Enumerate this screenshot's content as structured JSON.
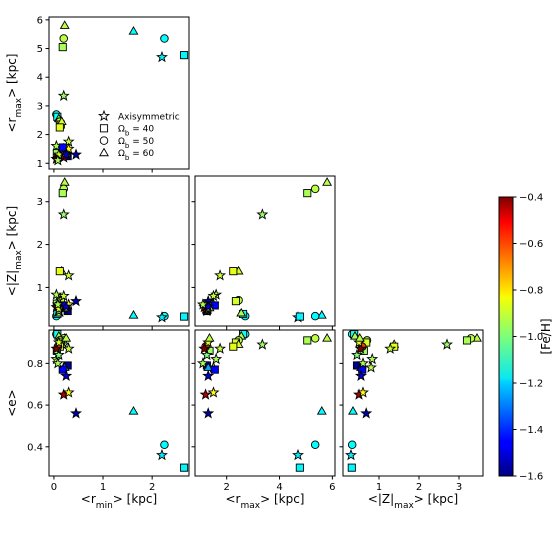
{
  "chart_data": {
    "type": "scatter",
    "layout": "corner-plot",
    "variables": [
      {
        "key": "rmin",
        "name": "r_min",
        "prefix": "<r",
        "sub": "min",
        "suffix": "> [kpc]"
      },
      {
        "key": "rmax",
        "name": "r_max",
        "prefix": "<r",
        "sub": "max",
        "suffix": "> [kpc]"
      },
      {
        "key": "zmax",
        "name": "|Z|_max",
        "prefix": "<|Z|",
        "sub": "max",
        "suffix": "> [kpc]"
      },
      {
        "key": "e",
        "name": "e",
        "prefix": "<e>",
        "sub": "",
        "suffix": ""
      }
    ],
    "ranges": {
      "rmin": [
        -0.1,
        2.75
      ],
      "rmax": [
        0.8,
        6.1
      ],
      "zmax": [
        0.1,
        3.6
      ],
      "e": [
        0.26,
        0.96
      ]
    },
    "ticks": {
      "rmin": [
        0,
        1,
        2
      ],
      "rmax_x": [
        2,
        4,
        6
      ],
      "rmax_y": [
        1,
        2,
        3,
        4,
        5,
        6
      ],
      "zmax_x": [
        1,
        2,
        3
      ],
      "zmax_y": [
        1,
        2,
        3
      ],
      "e": [
        0.4,
        0.6,
        0.8
      ]
    },
    "panels": [
      {
        "x": "rmin",
        "y": "rmax"
      },
      {
        "x": "rmin",
        "y": "zmax"
      },
      {
        "x": "rmax",
        "y": "zmax"
      },
      {
        "x": "rmin",
        "y": "e"
      },
      {
        "x": "rmax",
        "y": "e"
      },
      {
        "x": "zmax",
        "y": "e"
      }
    ],
    "legend": {
      "placement": "inside top-left panel, lower-center",
      "entries": [
        {
          "marker": "star",
          "label": "Axisymmetric"
        },
        {
          "marker": "square",
          "label": "Ω_b = 40",
          "prefix": "Ω",
          "sub": "b",
          "suffix": " = 40"
        },
        {
          "marker": "circle",
          "label": "Ω_b = 50",
          "prefix": "Ω",
          "sub": "b",
          "suffix": " = 50"
        },
        {
          "marker": "triangle",
          "label": "Ω_b = 60",
          "prefix": "Ω",
          "sub": "b",
          "suffix": " = 60"
        }
      ]
    },
    "colorbar": {
      "label": "[Fe/H]",
      "range": [
        -1.6,
        -0.4
      ],
      "ticks": [
        "-0.4",
        "-0.6",
        "-0.8",
        "-1.0",
        "-1.2",
        "-1.4",
        "-1.6"
      ],
      "colormap": "jet"
    },
    "points": [
      {
        "marker": "triangle",
        "rmin": 0.22,
        "rmax": 5.8,
        "zmax": 3.45,
        "e": 0.92,
        "feh": -0.93
      },
      {
        "marker": "circle",
        "rmin": 0.2,
        "rmax": 5.35,
        "zmax": 3.3,
        "e": 0.92,
        "feh": -0.93
      },
      {
        "marker": "square",
        "rmin": 0.18,
        "rmax": 5.05,
        "zmax": 3.2,
        "e": 0.91,
        "feh": -0.95
      },
      {
        "marker": "star",
        "rmin": 0.2,
        "rmax": 3.35,
        "zmax": 2.7,
        "e": 0.89,
        "feh": -0.97
      },
      {
        "marker": "triangle",
        "rmin": 1.62,
        "rmax": 5.6,
        "zmax": 0.35,
        "e": 0.57,
        "feh": -1.15
      },
      {
        "marker": "circle",
        "rmin": 2.25,
        "rmax": 5.35,
        "zmax": 0.33,
        "e": 0.41,
        "feh": -1.15
      },
      {
        "marker": "star",
        "rmin": 2.2,
        "rmax": 4.7,
        "zmax": 0.3,
        "e": 0.36,
        "feh": -1.17
      },
      {
        "marker": "square",
        "rmin": 2.65,
        "rmax": 4.77,
        "zmax": 0.32,
        "e": 0.3,
        "feh": -1.16
      },
      {
        "marker": "circle",
        "rmin": 0.05,
        "rmax": 2.7,
        "zmax": 0.33,
        "e": 0.94,
        "feh": -1.15
      },
      {
        "marker": "square",
        "rmin": 0.07,
        "rmax": 2.62,
        "zmax": 0.38,
        "e": 0.94,
        "feh": -1.13
      },
      {
        "marker": "triangle",
        "rmin": 0.1,
        "rmax": 2.55,
        "zmax": 0.4,
        "e": 0.93,
        "feh": -0.95
      },
      {
        "marker": "circle",
        "rmin": 0.12,
        "rmax": 2.45,
        "zmax": 0.7,
        "e": 0.91,
        "feh": -0.93
      },
      {
        "marker": "square",
        "rmin": 0.14,
        "rmax": 2.35,
        "zmax": 0.68,
        "e": 0.9,
        "feh": -0.9
      },
      {
        "marker": "triangle",
        "rmin": 0.16,
        "rmax": 2.45,
        "zmax": 1.38,
        "e": 0.89,
        "feh": -0.9
      },
      {
        "marker": "square",
        "rmin": 0.12,
        "rmax": 2.25,
        "zmax": 1.38,
        "e": 0.88,
        "feh": -0.88
      },
      {
        "marker": "star",
        "rmin": 0.3,
        "rmax": 1.75,
        "zmax": 1.28,
        "e": 0.87,
        "feh": -0.92
      },
      {
        "marker": "star",
        "rmin": 0.05,
        "rmax": 1.6,
        "zmax": 0.83,
        "e": 0.82,
        "feh": -0.95
      },
      {
        "marker": "star",
        "rmin": 0.2,
        "rmax": 1.5,
        "zmax": 0.8,
        "e": 0.78,
        "feh": -0.92
      },
      {
        "marker": "square",
        "rmin": 0.06,
        "rmax": 1.35,
        "zmax": 0.62,
        "e": 0.86,
        "feh": -0.97
      },
      {
        "marker": "square",
        "rmin": 0.28,
        "rmax": 1.25,
        "zmax": 0.45,
        "e": 0.79,
        "feh": -1.58
      },
      {
        "marker": "triangle",
        "rmin": 0.22,
        "rmax": 1.3,
        "zmax": 0.55,
        "e": 0.78,
        "feh": -1.25
      },
      {
        "marker": "star",
        "rmin": 0.1,
        "rmax": 1.25,
        "zmax": 0.45,
        "e": 0.84,
        "feh": -1.0
      },
      {
        "marker": "star",
        "rmin": 0.45,
        "rmax": 1.3,
        "zmax": 0.68,
        "e": 0.56,
        "feh": -1.55
      },
      {
        "marker": "star",
        "rmin": 0.2,
        "rmax": 1.2,
        "zmax": 0.5,
        "e": 0.65,
        "feh": -0.45
      },
      {
        "marker": "star",
        "rmin": 0.3,
        "rmax": 1.5,
        "zmax": 0.6,
        "e": 0.66,
        "feh": -0.85
      },
      {
        "marker": "square",
        "rmin": 0.18,
        "rmax": 1.55,
        "zmax": 0.58,
        "e": 0.77,
        "feh": -1.45
      },
      {
        "marker": "circle",
        "rmin": 0.08,
        "rmax": 1.2,
        "zmax": 0.58,
        "e": 0.88,
        "feh": -0.62
      },
      {
        "marker": "star",
        "rmin": 0.05,
        "rmax": 1.15,
        "zmax": 0.54,
        "e": 0.87,
        "feh": -0.4
      },
      {
        "marker": "star",
        "rmin": 0.1,
        "rmax": 1.3,
        "zmax": 0.5,
        "e": 0.9,
        "feh": -0.9
      },
      {
        "marker": "triangle",
        "rmin": 0.25,
        "rmax": 1.35,
        "zmax": 0.52,
        "e": 0.92,
        "feh": -0.93
      },
      {
        "marker": "star",
        "rmin": 0.25,
        "rmax": 1.3,
        "zmax": 0.55,
        "e": 0.74,
        "feh": -1.5
      },
      {
        "marker": "star",
        "rmin": 0.08,
        "rmax": 1.1,
        "zmax": 0.6,
        "e": 0.8,
        "feh": -0.95
      }
    ]
  }
}
